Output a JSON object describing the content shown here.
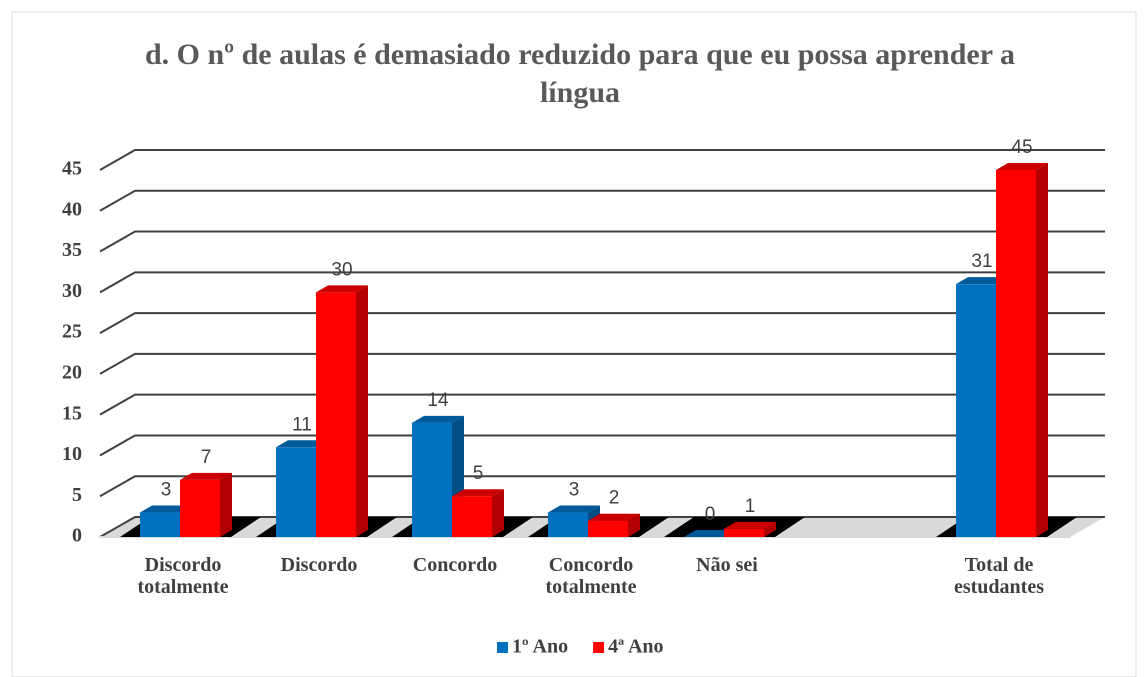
{
  "chart_data": {
    "type": "bar3d",
    "title": "d. O nº de aulas é demasiado reduzido para que eu possa aprender a língua",
    "categories": [
      "Discordo totalmente",
      "Discordo",
      "Concordo",
      "Concordo totalmente",
      "Não sei",
      null,
      "Total de estudantes"
    ],
    "series": [
      {
        "name": "1º Ano",
        "color": "#0070c0",
        "values": [
          3,
          11,
          14,
          3,
          0,
          null,
          31
        ]
      },
      {
        "name": "4ª Ano",
        "color": "#ff0000",
        "values": [
          7,
          30,
          5,
          2,
          1,
          null,
          45
        ]
      }
    ],
    "ylim": [
      0,
      45
    ],
    "yticks": [
      0,
      5,
      10,
      15,
      20,
      25,
      30,
      35,
      40,
      45
    ],
    "grid": true,
    "legend": "bottom"
  }
}
